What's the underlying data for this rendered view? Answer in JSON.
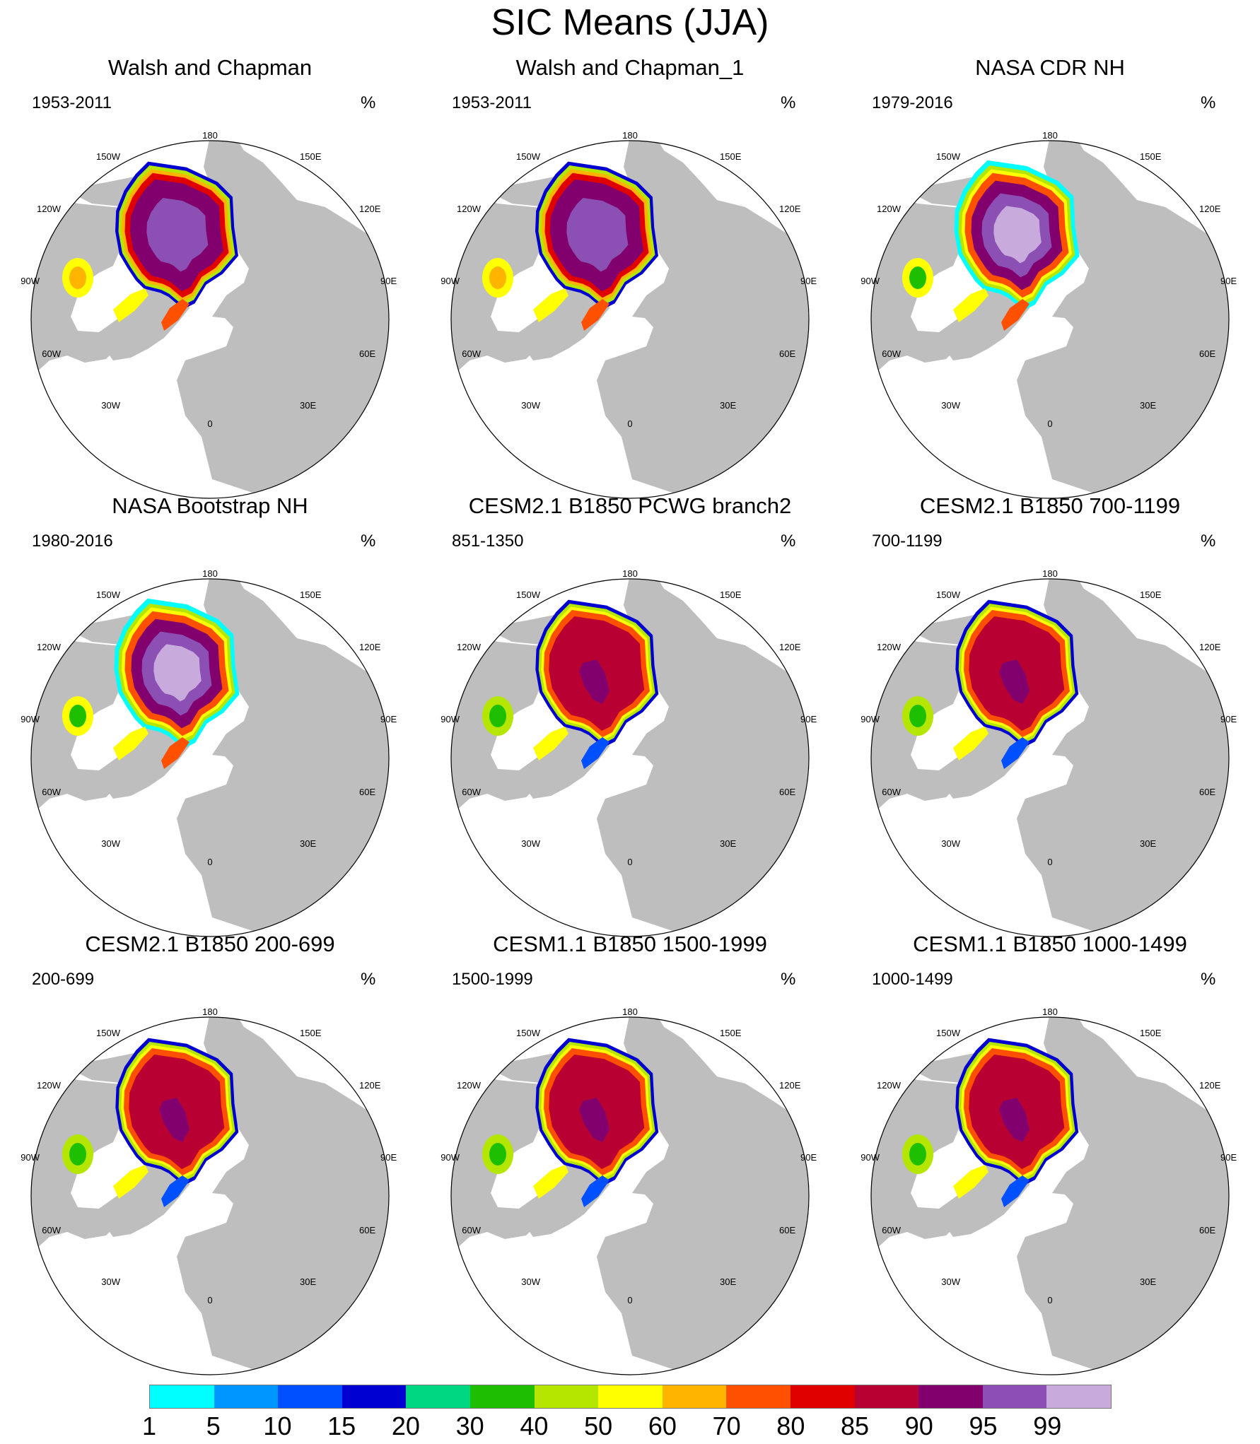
{
  "figure": {
    "title": "SIC Means (JJA)"
  },
  "map_style": {
    "ocean_color": "#ffffff",
    "land_color": "#bebebe",
    "outline_color": "#000000"
  },
  "longitude_labels": [
    "180",
    "150E",
    "120E",
    "90E",
    "60E",
    "30E",
    "0",
    "30W",
    "60W",
    "90W",
    "120W",
    "150W"
  ],
  "panels": [
    {
      "title": "Walsh and Chapman",
      "years": "1953-2011",
      "unit": "%",
      "style": "obs1"
    },
    {
      "title": "Walsh and Chapman_1",
      "years": "1953-2011",
      "unit": "%",
      "style": "obs1"
    },
    {
      "title": "NASA CDR NH",
      "years": "1979-2016",
      "unit": "%",
      "style": "obs2"
    },
    {
      "title": "NASA Bootstrap NH",
      "years": "1980-2016",
      "unit": "%",
      "style": "obs2"
    },
    {
      "title": "CESM2.1 B1850 PCWG branch2",
      "years": "851-1350",
      "unit": "%",
      "style": "model"
    },
    {
      "title": "CESM2.1 B1850 700-1199",
      "years": "700-1199",
      "unit": "%",
      "style": "model"
    },
    {
      "title": "CESM2.1 B1850 200-699",
      "years": "200-699",
      "unit": "%",
      "style": "model"
    },
    {
      "title": "CESM1.1 B1850 1500-1999",
      "years": "1500-1999",
      "unit": "%",
      "style": "model"
    },
    {
      "title": "CESM1.1 B1850 1000-1499",
      "years": "1000-1499",
      "unit": "%",
      "style": "model"
    }
  ],
  "colorbar": {
    "labels": [
      "1",
      "5",
      "10",
      "15",
      "20",
      "30",
      "40",
      "50",
      "60",
      "70",
      "80",
      "85",
      "90",
      "95",
      "99"
    ],
    "colors": [
      "#00ffff",
      "#0096ff",
      "#0050ff",
      "#0000d2",
      "#00d782",
      "#1ebe00",
      "#b4e600",
      "#ffff00",
      "#ffb400",
      "#ff5000",
      "#e10000",
      "#b90032",
      "#82006e",
      "#8c50b4",
      "#c8aadc"
    ]
  }
}
